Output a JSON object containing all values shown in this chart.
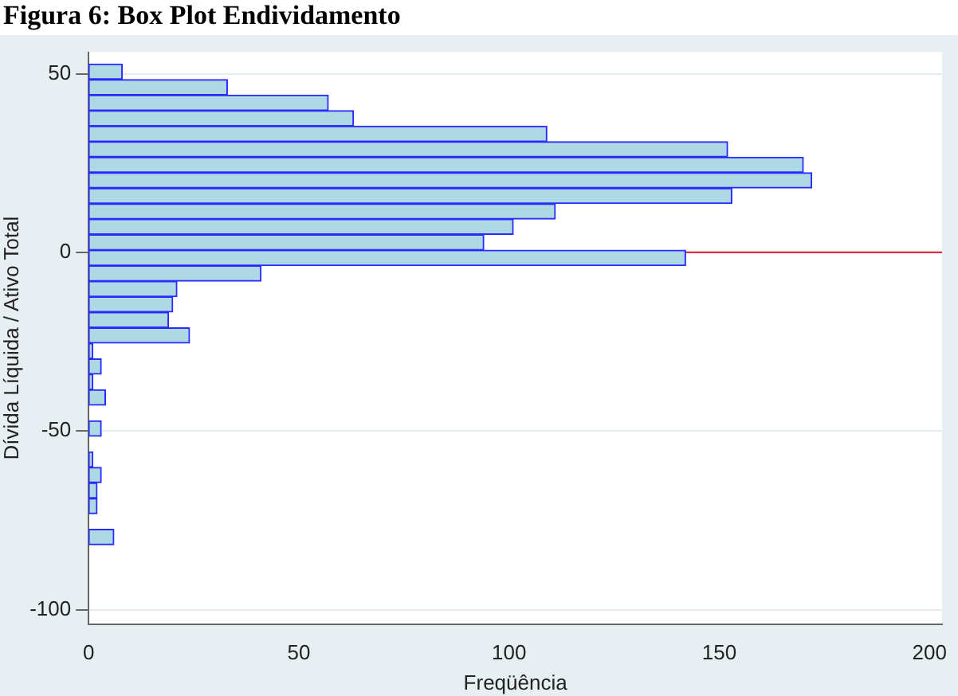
{
  "chart_data": {
    "type": "histogram",
    "orientation": "horizontal",
    "title": "Figura 6: Box Plot Endividamento",
    "xlabel": "Freqüência",
    "ylabel": "Dívida Líquida / Ativo Total",
    "bins": [
      -81.8,
      -77.5,
      -73.2,
      -68.8,
      -64.5,
      -60.1,
      -55.8,
      -51.5,
      -47.1,
      -42.8,
      -38.4,
      -34.1,
      -29.8,
      -25.4,
      -21.1,
      -16.7,
      -12.4,
      -8.1,
      -3.7,
      0.6,
      5.0,
      9.3,
      13.6,
      18.0,
      22.3,
      26.7,
      31.0,
      35.3,
      39.7,
      44.0,
      48.4,
      52.7
    ],
    "values": [
      6,
      0,
      2,
      2,
      3,
      1,
      0,
      3,
      0,
      4,
      1,
      3,
      1,
      24,
      19,
      20,
      21,
      41,
      142,
      94,
      101,
      111,
      153,
      172,
      170,
      152,
      109,
      63,
      57,
      33,
      8
    ],
    "color": "#add8e6",
    "xlim": [
      0,
      203
    ],
    "xticks": [
      0,
      50,
      100,
      150,
      200
    ],
    "ylim": [
      -104,
      56
    ],
    "yticks": [
      -100,
      -50,
      0,
      50
    ],
    "grid": "y",
    "ref_lines": [
      {
        "axis": "y",
        "value": 0,
        "color": "#e8283c"
      }
    ]
  }
}
